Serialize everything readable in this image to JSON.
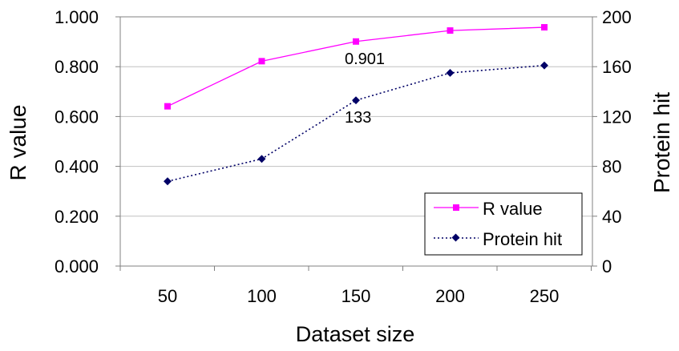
{
  "chart_data": {
    "type": "line",
    "title": "",
    "x": [
      50,
      100,
      150,
      200,
      250
    ],
    "xlabel": "Dataset size",
    "x_tick_labels": [
      "50",
      "100",
      "150",
      "200",
      "250"
    ],
    "ylabel_left": "R value",
    "ylabel_right": "Protein hit",
    "ylim_left": [
      0,
      1
    ],
    "ylim_right": [
      0,
      200
    ],
    "y_tick_labels_left": [
      "0.000",
      "0.200",
      "0.400",
      "0.600",
      "0.800",
      "1.000"
    ],
    "y_tick_labels_right": [
      "0",
      "40",
      "80",
      "120",
      "160",
      "200"
    ],
    "grid": true,
    "legend_position": "bottom-right",
    "series": [
      {
        "name": "R value",
        "axis": "left",
        "values": [
          0.641,
          0.822,
          0.901,
          0.945,
          0.958
        ],
        "color": "#ff00ff",
        "marker": "square",
        "line_style": "solid"
      },
      {
        "name": "Protein hit",
        "axis": "right",
        "values": [
          68,
          86,
          133,
          155,
          161
        ],
        "color": "#000066",
        "marker": "diamond",
        "line_style": "dotted"
      }
    ],
    "annotations": [
      {
        "series": 0,
        "x": 150,
        "text": "0.901"
      },
      {
        "series": 1,
        "x": 150,
        "text": "133"
      }
    ]
  }
}
